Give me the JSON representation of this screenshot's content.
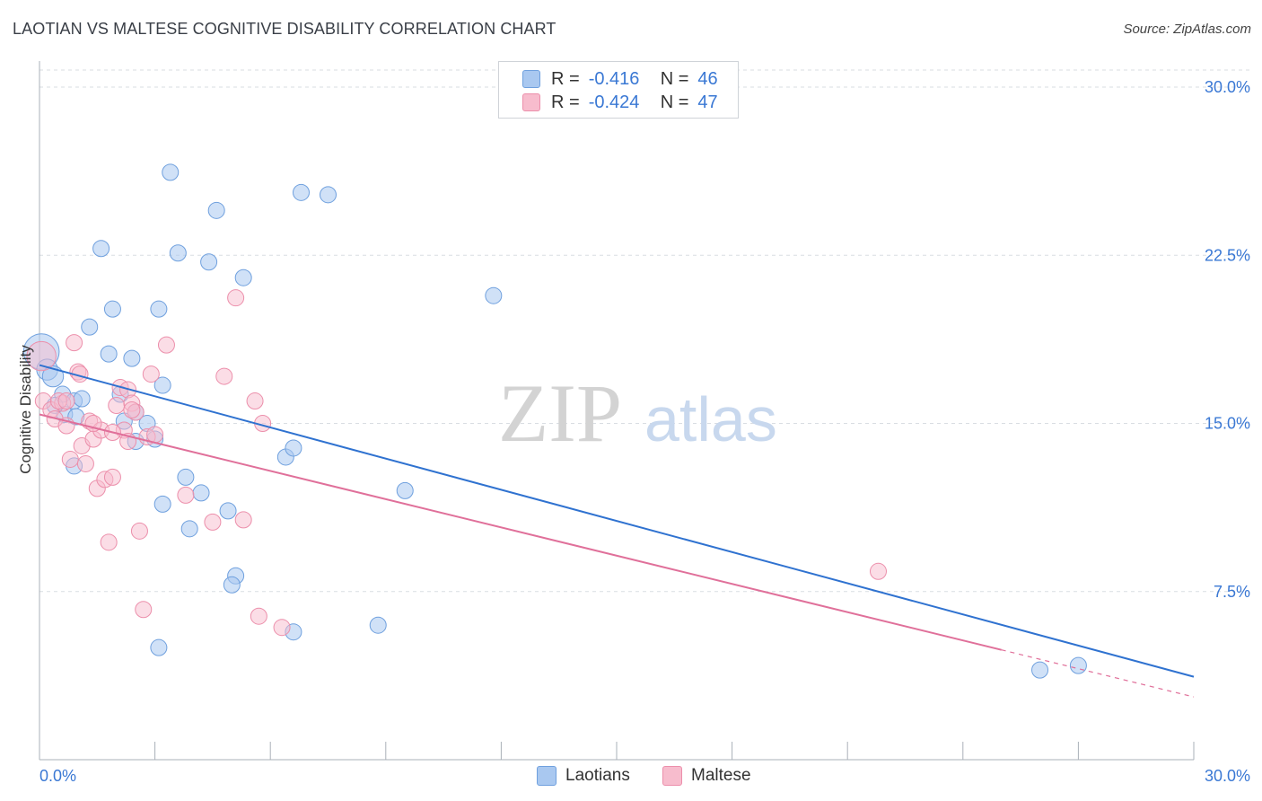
{
  "title": "LAOTIAN VS MALTESE COGNITIVE DISABILITY CORRELATION CHART",
  "source": "Source: ZipAtlas.com",
  "watermark": {
    "zip": "ZIP",
    "atlas": "atlas"
  },
  "legend": {
    "rows": [
      {
        "r_label": "R =",
        "r_value": "-0.416",
        "n_label": "N =",
        "n_value": "46"
      },
      {
        "r_label": "R =",
        "r_value": "-0.424",
        "n_label": "N =",
        "n_value": "47"
      }
    ]
  },
  "bottom_legend": {
    "laotians": "Laotians",
    "maltese": "Maltese"
  },
  "colors": {
    "laotians_fill": "#a9c8f0",
    "laotians_stroke": "#6fa0de",
    "laotians_line": "#2f72d0",
    "maltese_fill": "#f7bccd",
    "maltese_stroke": "#ec8fab",
    "maltese_line": "#e0709a",
    "grid": "#d9dde2",
    "axis_text": "#3a78d4"
  },
  "chart_data": {
    "type": "scatter",
    "title": "LAOTIAN VS MALTESE COGNITIVE DISABILITY CORRELATION CHART",
    "xlabel": "",
    "ylabel": "Cognitive Disability",
    "xlim": [
      0,
      30
    ],
    "ylim": [
      0,
      30.5
    ],
    "x_tick_labels": [
      "0.0%",
      "30.0%"
    ],
    "y_ticks": [
      7.5,
      15.0,
      22.5,
      30.0
    ],
    "y_tick_labels": [
      "7.5%",
      "15.0%",
      "22.5%",
      "30.0%"
    ],
    "grid": "horizontal dashed",
    "series": [
      {
        "name": "Laotians",
        "points": [
          [
            0.05,
            18.2,
            2.2
          ],
          [
            0.2,
            17.4,
            1.3
          ],
          [
            0.35,
            17.1,
            1.3
          ],
          [
            0.6,
            16.3,
            1.0
          ],
          [
            0.9,
            16.0,
            1.0
          ],
          [
            0.65,
            15.4,
            1.0
          ],
          [
            0.95,
            15.3,
            1.0
          ],
          [
            1.3,
            19.3,
            1.0
          ],
          [
            1.6,
            22.8,
            1.0
          ],
          [
            1.9,
            20.1,
            1.0
          ],
          [
            1.8,
            18.1,
            1.0
          ],
          [
            2.1,
            16.3,
            1.0
          ],
          [
            2.2,
            15.1,
            1.0
          ],
          [
            2.5,
            15.5,
            1.0
          ],
          [
            2.5,
            14.2,
            1.0
          ],
          [
            2.4,
            17.9,
            1.0
          ],
          [
            2.8,
            15.0,
            1.0
          ],
          [
            3.0,
            14.3,
            1.0
          ],
          [
            3.1,
            20.1,
            1.0
          ],
          [
            3.1,
            5.0,
            1.0
          ],
          [
            3.2,
            16.7,
            1.0
          ],
          [
            3.2,
            11.4,
            1.0
          ],
          [
            3.4,
            26.2,
            1.0
          ],
          [
            3.6,
            22.6,
            1.0
          ],
          [
            3.8,
            12.6,
            1.0
          ],
          [
            3.9,
            10.3,
            1.0
          ],
          [
            4.2,
            11.9,
            1.0
          ],
          [
            4.4,
            22.2,
            1.0
          ],
          [
            4.6,
            24.5,
            1.0
          ],
          [
            4.9,
            11.1,
            1.0
          ],
          [
            5.1,
            8.2,
            1.0
          ],
          [
            5.0,
            7.8,
            1.0
          ],
          [
            5.3,
            21.5,
            1.0
          ],
          [
            6.4,
            13.5,
            1.0
          ],
          [
            6.6,
            13.9,
            1.0
          ],
          [
            6.8,
            25.3,
            1.0
          ],
          [
            7.5,
            25.2,
            1.0
          ],
          [
            6.6,
            5.7,
            1.0
          ],
          [
            8.8,
            6.0,
            1.0
          ],
          [
            9.5,
            12.0,
            1.0
          ],
          [
            11.8,
            20.7,
            1.0
          ],
          [
            26.0,
            4.0,
            1.0
          ],
          [
            27.0,
            4.2,
            1.0
          ],
          [
            0.9,
            13.1,
            1.0
          ],
          [
            1.1,
            16.1,
            1.0
          ],
          [
            0.4,
            15.8,
            1.0
          ]
        ]
      },
      {
        "name": "Maltese",
        "points": [
          [
            0.05,
            18.0,
            1.8
          ],
          [
            0.1,
            16.0,
            1.0
          ],
          [
            0.3,
            15.6,
            1.0
          ],
          [
            0.4,
            15.2,
            1.0
          ],
          [
            0.6,
            15.9,
            1.0
          ],
          [
            0.7,
            14.9,
            1.0
          ],
          [
            0.8,
            13.4,
            1.0
          ],
          [
            0.9,
            18.6,
            1.0
          ],
          [
            1.0,
            17.3,
            1.0
          ],
          [
            1.1,
            14.0,
            1.0
          ],
          [
            1.2,
            13.2,
            1.0
          ],
          [
            1.3,
            15.1,
            1.0
          ],
          [
            1.4,
            14.3,
            1.0
          ],
          [
            1.5,
            12.1,
            1.0
          ],
          [
            1.6,
            14.7,
            1.0
          ],
          [
            1.7,
            12.5,
            1.0
          ],
          [
            1.8,
            9.7,
            1.0
          ],
          [
            1.9,
            12.6,
            1.0
          ],
          [
            2.0,
            15.8,
            1.0
          ],
          [
            2.1,
            16.6,
            1.0
          ],
          [
            2.2,
            14.7,
            1.0
          ],
          [
            2.3,
            16.5,
            1.0
          ],
          [
            2.4,
            15.9,
            1.0
          ],
          [
            2.5,
            15.5,
            1.0
          ],
          [
            2.6,
            10.2,
            1.0
          ],
          [
            2.7,
            6.7,
            1.0
          ],
          [
            2.8,
            14.4,
            1.0
          ],
          [
            2.9,
            17.2,
            1.0
          ],
          [
            3.0,
            14.5,
            1.0
          ],
          [
            3.3,
            18.5,
            1.0
          ],
          [
            3.8,
            11.8,
            1.0
          ],
          [
            4.5,
            10.6,
            1.0
          ],
          [
            4.8,
            17.1,
            1.0
          ],
          [
            5.1,
            20.6,
            1.0
          ],
          [
            5.3,
            10.7,
            1.0
          ],
          [
            5.6,
            16.0,
            1.0
          ],
          [
            5.8,
            15.0,
            1.0
          ],
          [
            5.7,
            6.4,
            1.0
          ],
          [
            6.3,
            5.9,
            1.0
          ],
          [
            21.8,
            8.4,
            1.0
          ],
          [
            0.5,
            16.0,
            1.0
          ],
          [
            1.9,
            14.6,
            1.0
          ],
          [
            2.3,
            14.2,
            1.0
          ],
          [
            1.05,
            17.2,
            1.0
          ],
          [
            0.7,
            16.0,
            1.0
          ],
          [
            2.4,
            15.6,
            1.0
          ],
          [
            1.4,
            15.0,
            1.0
          ]
        ]
      }
    ],
    "trend_lines": [
      {
        "series": "Laotians",
        "x": [
          0,
          30
        ],
        "y": [
          17.6,
          3.7
        ]
      },
      {
        "series": "Maltese",
        "x": [
          0,
          25.0
        ],
        "y": [
          15.4,
          4.9
        ],
        "dashed_extension": {
          "x": [
            25.0,
            30
          ],
          "y": [
            4.9,
            2.8
          ]
        }
      }
    ]
  }
}
